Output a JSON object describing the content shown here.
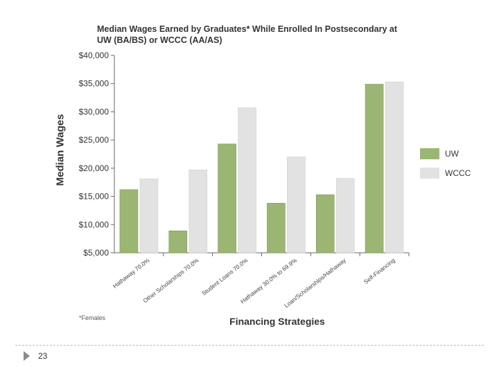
{
  "chart_data": {
    "type": "bar",
    "title": "Median Wages Earned by Graduates* While Enrolled In Postsecondary at UW (BA/BS) or WCCC (AA/AS)",
    "xlabel": "Financing Strategies",
    "ylabel": "Median Wages",
    "footnote": "*Females",
    "categories": [
      "Hathaway 70.0%",
      "Other Scholarships 70.0%",
      "Student Loans 70.0%",
      "Hathaway 30.0% to 69.9%",
      "Loan/Scholarships/Hathaway",
      "Self-Financing"
    ],
    "series": [
      {
        "name": "UW",
        "values": [
          16200,
          8900,
          24300,
          13800,
          15300,
          34900
        ],
        "color": "#9bb672"
      },
      {
        "name": "WCCC",
        "values": [
          18100,
          19700,
          30700,
          22000,
          18200,
          35300
        ],
        "color": "#e2e2e2"
      }
    ],
    "ylim": [
      5000,
      40000
    ],
    "yticks": [
      "$5,000",
      "$10,000",
      "$15,000",
      "$20,000",
      "$25,000",
      "$30,000",
      "$35,000",
      "$40,000"
    ],
    "legend_position": "right",
    "grid": false
  },
  "slide": {
    "page_number": "23"
  }
}
